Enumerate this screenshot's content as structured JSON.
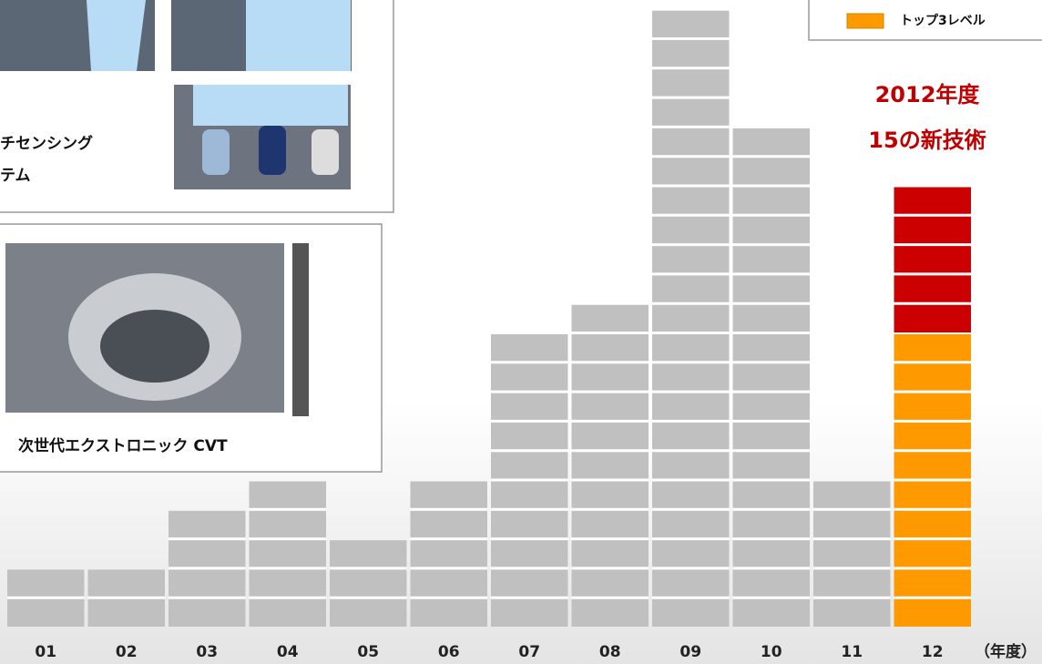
{
  "chart_data": {
    "type": "stacked-blocks",
    "title": [
      "2012年度",
      "15の新技術"
    ],
    "x_label": "（年度）",
    "categories": [
      "01",
      "02",
      "03",
      "04",
      "05",
      "06",
      "07",
      "08",
      "09",
      "10",
      "11",
      "12"
    ],
    "series": [
      {
        "color": "#c0c0c0",
        "values": [
          2,
          2,
          4,
          5,
          3,
          5,
          10,
          11,
          21,
          17,
          5,
          null
        ]
      },
      {
        "name": "トップ3レベル",
        "color": "#ff9900",
        "values": [
          null,
          null,
          null,
          null,
          null,
          null,
          null,
          null,
          null,
          null,
          null,
          10
        ]
      },
      {
        "color": "#cc0000",
        "values": [
          null,
          null,
          null,
          null,
          null,
          null,
          null,
          null,
          null,
          null,
          null,
          5
        ]
      }
    ],
    "legend": "top-right"
  },
  "panels": [
    {
      "caption": [
        "チセンシング",
        "テム"
      ]
    },
    {
      "caption": [
        "次世代エクストロニック CVT"
      ]
    }
  ]
}
